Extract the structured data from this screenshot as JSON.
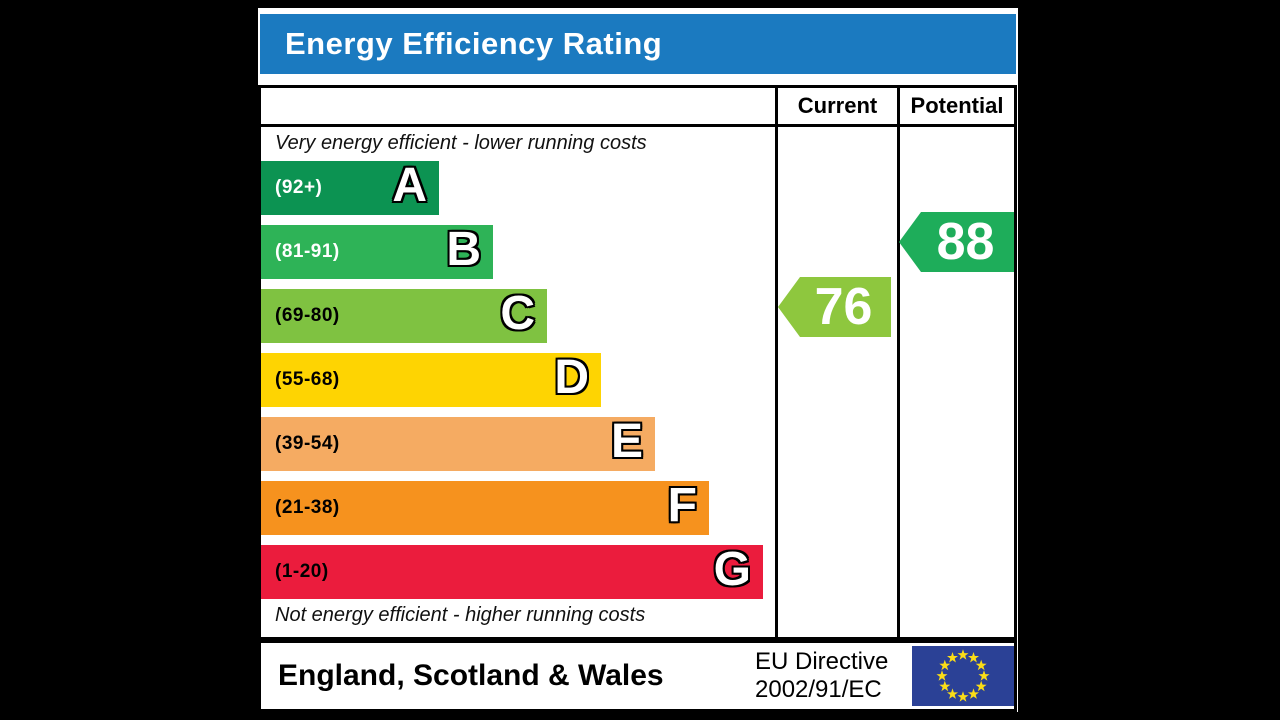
{
  "title": "Energy Efficiency Rating",
  "table": {
    "current_header": "Current",
    "potential_header": "Potential",
    "top_note": "Very energy efficient - lower running costs",
    "bottom_note": "Not energy efficient - higher running costs"
  },
  "bands": [
    {
      "letter": "A",
      "range": "(92+)",
      "color": "#0c9352",
      "label_color": "#ffffff"
    },
    {
      "letter": "B",
      "range": "(81-91)",
      "color": "#2eb357",
      "label_color": "#ffffff"
    },
    {
      "letter": "C",
      "range": "(69-80)",
      "color": "#7fc241",
      "label_color": "#000000"
    },
    {
      "letter": "D",
      "range": "(55-68)",
      "color": "#fed402",
      "label_color": "#000000"
    },
    {
      "letter": "E",
      "range": "(39-54)",
      "color": "#f5ab62",
      "label_color": "#000000"
    },
    {
      "letter": "F",
      "range": "(21-38)",
      "color": "#f6921e",
      "label_color": "#000000"
    },
    {
      "letter": "G",
      "range": "(1-20)",
      "color": "#eb1c3d",
      "label_color": "#000000"
    }
  ],
  "ratings": {
    "current": {
      "value": "76",
      "band": "C",
      "arrow_color": "#8ec73e"
    },
    "potential": {
      "value": "88",
      "band": "B",
      "arrow_color": "#1ead5a"
    }
  },
  "footer": {
    "region": "England, Scotland & Wales",
    "directive_line1": "EU Directive",
    "directive_line2": "2002/91/EC"
  },
  "colors": {
    "header_bar_blue": "#1b7ac0",
    "eu_flag_blue": "#2b4196",
    "eu_star_yellow": "#fadd17"
  },
  "chart_data": {
    "type": "bar",
    "title": "Energy Efficiency Rating",
    "categories": [
      "A",
      "B",
      "C",
      "D",
      "E",
      "F",
      "G"
    ],
    "band_ranges": [
      "92+",
      "81-91",
      "69-80",
      "55-68",
      "39-54",
      "21-38",
      "1-20"
    ],
    "band_colors": [
      "#0c9352",
      "#2eb357",
      "#7fc241",
      "#fed402",
      "#f5ab62",
      "#f6921e",
      "#eb1c3d"
    ],
    "series": [
      {
        "name": "Current",
        "value": 76,
        "band": "C"
      },
      {
        "name": "Potential",
        "value": 88,
        "band": "B"
      }
    ],
    "notes": [
      "Very energy efficient - lower running costs",
      "Not energy efficient - higher running costs"
    ],
    "region": "England, Scotland & Wales",
    "directive": "EU Directive 2002/91/EC",
    "legend_position": "top-right-columns",
    "grid": false
  }
}
